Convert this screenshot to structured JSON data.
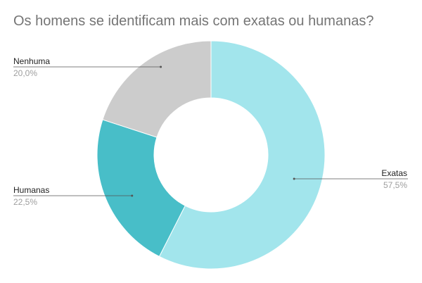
{
  "chart_data": {
    "type": "pie",
    "donut": true,
    "title": "Os homens se identificam mais com exatas ou humanas?",
    "legend": "none",
    "slices": [
      {
        "label": "Exatas",
        "value": 57.5,
        "value_label": "57,5%",
        "color": "#a2e5ec"
      },
      {
        "label": "Humanas",
        "value": 22.5,
        "value_label": "22,5%",
        "color": "#48bec8"
      },
      {
        "label": "Nenhuma",
        "value": 20.0,
        "value_label": "20,0%",
        "color": "#cccccc"
      }
    ]
  }
}
